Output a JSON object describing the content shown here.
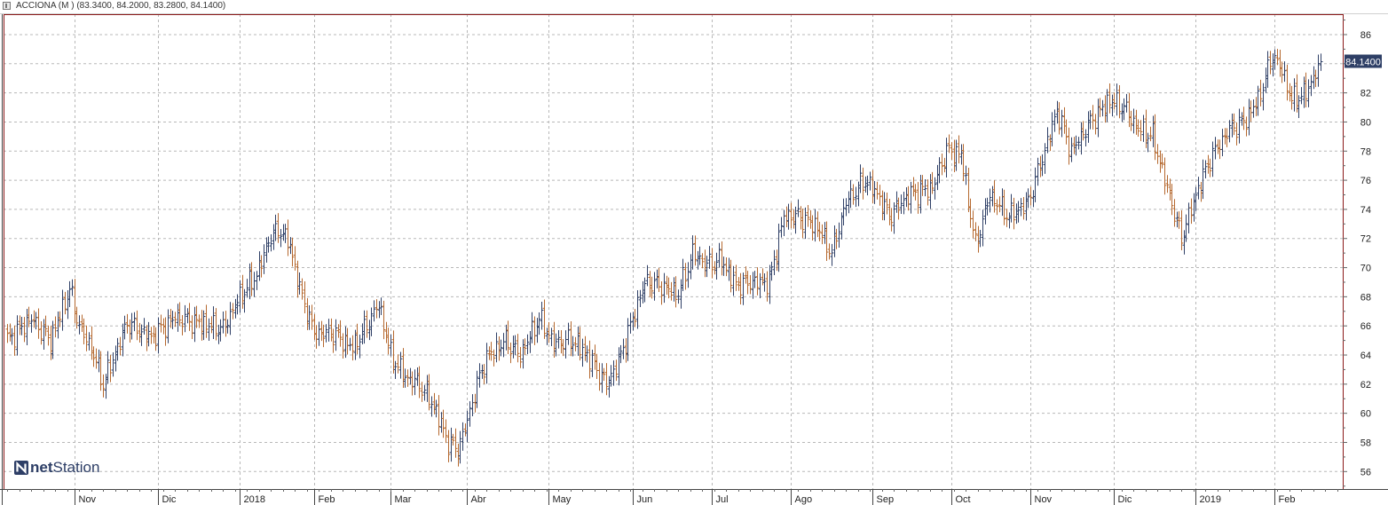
{
  "window": {
    "title": "ACCIONA (M ) (83.3400, 84.2000, 83.2800, 84.1400)"
  },
  "logo": {
    "part1": "net",
    "part2": "Station"
  },
  "colors": {
    "up": "#2e3f66",
    "down": "#b5682e",
    "frame": "#8b1a1a",
    "grid": "#b8b8b8",
    "price_badge": "#2e3f66"
  },
  "chart_data": {
    "type": "ohlc",
    "title": "ACCIONA (M ) (83.3400, 84.2000, 83.2800, 84.1400)",
    "last_price_label": "84.1400",
    "ylim": [
      54.8,
      87.4
    ],
    "y_ticks": [
      56,
      58,
      60,
      62,
      64,
      66,
      68,
      70,
      72,
      74,
      76,
      78,
      80,
      82,
      84,
      86
    ],
    "y_tick_labels": [
      "56",
      "58",
      "60",
      "62",
      "64",
      "66",
      "68",
      "70",
      "72",
      "74",
      "76",
      "78",
      "80",
      "82",
      "84",
      "86"
    ],
    "x_tick_labels": [
      "Nov",
      "Dic",
      "2018",
      "Feb",
      "Mar",
      "Abr",
      "May",
      "Jun",
      "Jul",
      "Ago",
      "Sep",
      "Oct",
      "Nov",
      "Dic",
      "2019",
      "Feb"
    ],
    "x_label_bar_index": [
      28,
      63,
      97,
      128,
      160,
      192,
      226,
      261,
      294,
      327,
      361,
      394,
      427,
      462,
      496,
      529
    ],
    "grid": true,
    "series": [
      {
        "close_waypoints": [
          [
            0,
            65.0
          ],
          [
            10,
            66.5
          ],
          [
            18,
            65.0
          ],
          [
            26,
            68.5
          ],
          [
            30,
            66.0
          ],
          [
            35,
            64.5
          ],
          [
            40,
            62.0
          ],
          [
            46,
            64.5
          ],
          [
            50,
            66.2
          ],
          [
            60,
            65.2
          ],
          [
            70,
            66.6
          ],
          [
            80,
            66.2
          ],
          [
            90,
            65.8
          ],
          [
            97,
            68.0
          ],
          [
            104,
            69.5
          ],
          [
            110,
            72.2
          ],
          [
            114,
            72.6
          ],
          [
            118,
            71.5
          ],
          [
            122,
            68.5
          ],
          [
            128,
            65.5
          ],
          [
            136,
            65.5
          ],
          [
            144,
            64.5
          ],
          [
            150,
            66.0
          ],
          [
            155,
            67.5
          ],
          [
            160,
            64.0
          ],
          [
            166,
            62.5
          ],
          [
            172,
            62.0
          ],
          [
            178,
            60.5
          ],
          [
            184,
            58.0
          ],
          [
            188,
            57.5
          ],
          [
            192,
            59.5
          ],
          [
            196,
            62.0
          ],
          [
            200,
            63.8
          ],
          [
            208,
            65.0
          ],
          [
            214,
            64.0
          ],
          [
            222,
            66.5
          ],
          [
            228,
            64.8
          ],
          [
            236,
            65.0
          ],
          [
            242,
            64.0
          ],
          [
            250,
            62.0
          ],
          [
            255,
            63.5
          ],
          [
            261,
            66.5
          ],
          [
            266,
            69.0
          ],
          [
            272,
            68.8
          ],
          [
            280,
            68.2
          ],
          [
            286,
            71.0
          ],
          [
            292,
            70.2
          ],
          [
            298,
            70.5
          ],
          [
            304,
            68.8
          ],
          [
            310,
            69.0
          ],
          [
            318,
            69.0
          ],
          [
            324,
            73.5
          ],
          [
            330,
            73.5
          ],
          [
            338,
            72.8
          ],
          [
            344,
            71.0
          ],
          [
            350,
            74.5
          ],
          [
            358,
            76.0
          ],
          [
            364,
            74.8
          ],
          [
            368,
            73.5
          ],
          [
            376,
            75.0
          ],
          [
            386,
            75.5
          ],
          [
            392,
            78.0
          ],
          [
            398,
            77.8
          ],
          [
            404,
            71.5
          ],
          [
            410,
            75.0
          ],
          [
            418,
            73.5
          ],
          [
            426,
            74.5
          ],
          [
            432,
            77.5
          ],
          [
            438,
            80.8
          ],
          [
            444,
            78.0
          ],
          [
            452,
            80.0
          ],
          [
            460,
            81.5
          ],
          [
            466,
            81.0
          ],
          [
            472,
            79.5
          ],
          [
            478,
            79.0
          ],
          [
            484,
            75.5
          ],
          [
            490,
            72.0
          ],
          [
            496,
            75.0
          ],
          [
            502,
            77.5
          ],
          [
            510,
            79.5
          ],
          [
            516,
            80.0
          ],
          [
            522,
            81.5
          ],
          [
            528,
            84.6
          ],
          [
            532,
            83.5
          ],
          [
            536,
            81.5
          ],
          [
            542,
            82.0
          ],
          [
            548,
            84.14
          ]
        ]
      }
    ]
  }
}
